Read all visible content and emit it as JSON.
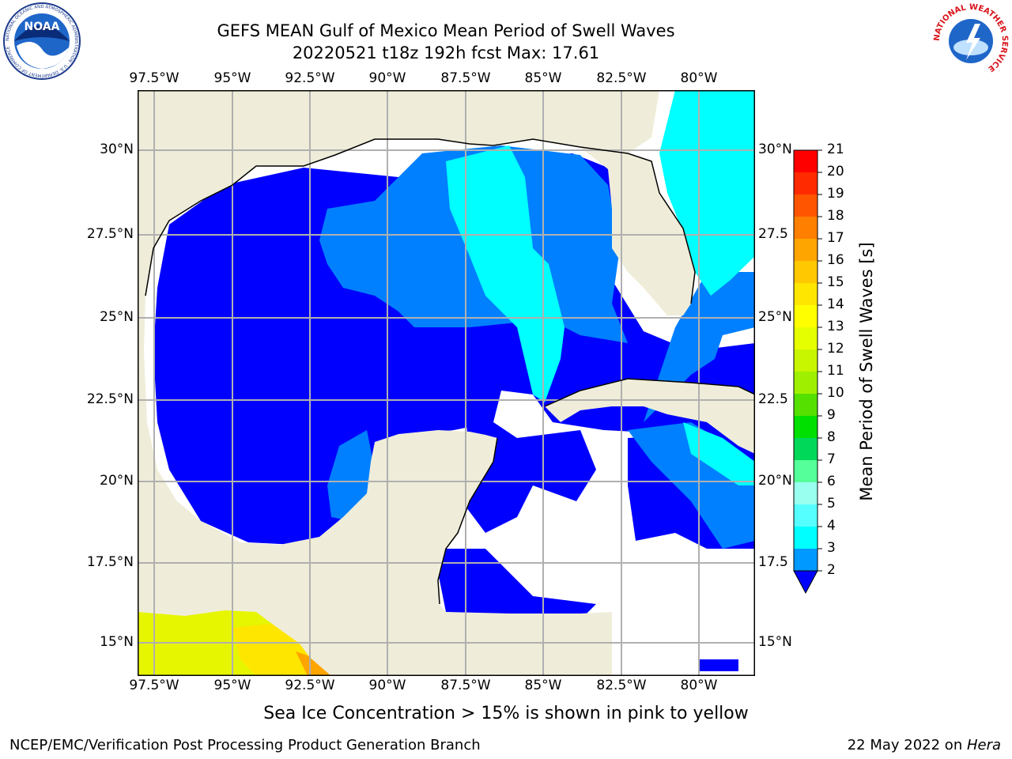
{
  "title_line1": "GEFS MEAN Gulf of Mexico Mean Period of Swell Waves",
  "title_line2": "20220521 t18z 192h fcst   Max: 17.61",
  "longitude_labels": [
    "97.5°W",
    "95°W",
    "92.5°W",
    "90°W",
    "87.5°W",
    "85°W",
    "82.5°W",
    "80°W"
  ],
  "latitude_labels": [
    "30°N",
    "27.5°N",
    "25°N",
    "22.5°N",
    "20°N",
    "17.5°N",
    "15°N"
  ],
  "latitude_labels_right": [
    "30°N",
    "27.5",
    "25°N",
    "22.5",
    "20°N",
    "17.5",
    "15°N"
  ],
  "colorbar": {
    "label": "Mean Period of Swell Waves [s]",
    "ticks": [
      "21",
      "20",
      "19",
      "18",
      "17",
      "16",
      "15",
      "14",
      "13",
      "12",
      "11",
      "10",
      "9",
      "8",
      "7",
      "6",
      "5",
      "4",
      "3",
      "2"
    ],
    "tick_labels": [
      "21",
      "20",
      "19",
      "18",
      "17",
      "16",
      "15",
      "14",
      "13",
      "12",
      "11",
      "10",
      "9",
      "8",
      "7",
      "6",
      "5",
      "4",
      "3",
      "2"
    ],
    "colors": [
      "#ff0000",
      "#ff2a00",
      "#ff5500",
      "#ff7f00",
      "#ffa500",
      "#ffc800",
      "#ffe600",
      "#ffff00",
      "#e6ff00",
      "#c8f500",
      "#9ef000",
      "#55e000",
      "#00e000",
      "#00d85a",
      "#55ff99",
      "#99ffee",
      "#55ffff",
      "#00ffff",
      "#0099ff",
      "#0066ff",
      "#0000ff"
    ]
  },
  "sea_ice_note": "Sea Ice Concentration > 15% is shown in pink to yellow",
  "footer": {
    "left": "NCEP/EMC/Verification Post Processing Product Generation Branch",
    "right_prefix": "22 May 2022 on ",
    "right_host": "Hera"
  },
  "map_colors": {
    "land": "#efedd9",
    "swell_2_4": "#0000ff",
    "swell_4_5": "#0080ff",
    "swell_5_6": "#00ffff",
    "swell_6_7": "#40f0ff",
    "no_data": "#ffffff",
    "grid": "#b0b0b0",
    "coast": "#000000"
  },
  "logos": {
    "noaa_text": "NOAA",
    "noaa_ring": "NATIONAL OCEANIC AND ATMOSPHERIC ADMINISTRATION · U.S. DEPARTMENT OF COMMERCE",
    "nws_ring": "NATIONAL WEATHER SERVICE"
  }
}
